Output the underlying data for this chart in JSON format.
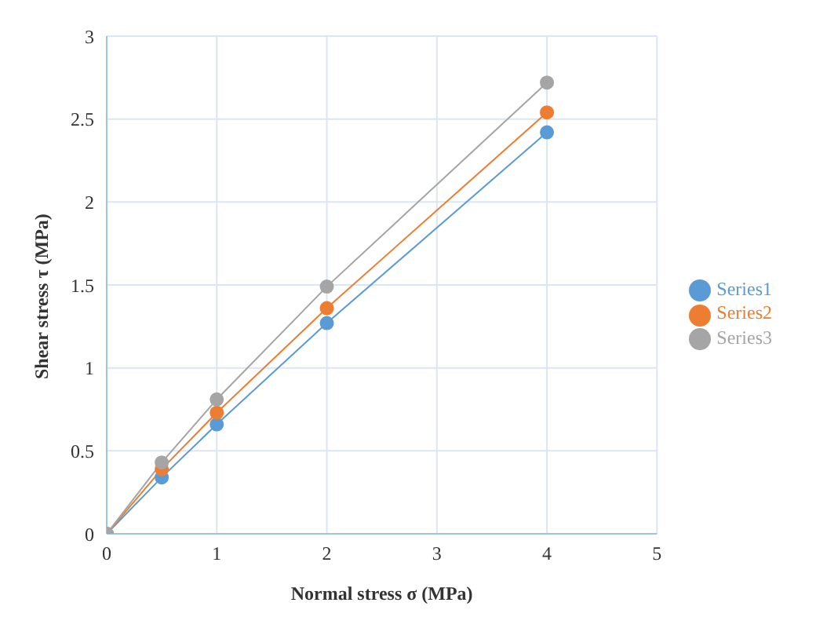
{
  "chart_data": {
    "type": "line",
    "xlabel": "Normal stress σ (MPa)",
    "ylabel": "Shear stress τ (MPa)",
    "x": [
      0,
      0.5,
      1,
      2,
      4
    ],
    "series": [
      {
        "name": "Series1",
        "color": "#5b9bd5",
        "values": [
          0,
          0.34,
          0.66,
          1.27,
          2.42
        ]
      },
      {
        "name": "Series2",
        "color": "#ed7d31",
        "values": [
          0,
          0.39,
          0.73,
          1.36,
          2.54
        ]
      },
      {
        "name": "Series3",
        "color": "#a5a5a5",
        "values": [
          0,
          0.43,
          0.81,
          1.49,
          2.72
        ]
      }
    ],
    "xlim": [
      0,
      5
    ],
    "xticks": [
      0,
      1,
      2,
      3,
      4,
      5
    ],
    "ylim": [
      0,
      3
    ],
    "yticks": [
      0,
      0.5,
      1,
      1.5,
      2,
      2.5,
      3
    ],
    "grid": true,
    "legend": "right",
    "marker": "circle",
    "line_style": "solid"
  }
}
